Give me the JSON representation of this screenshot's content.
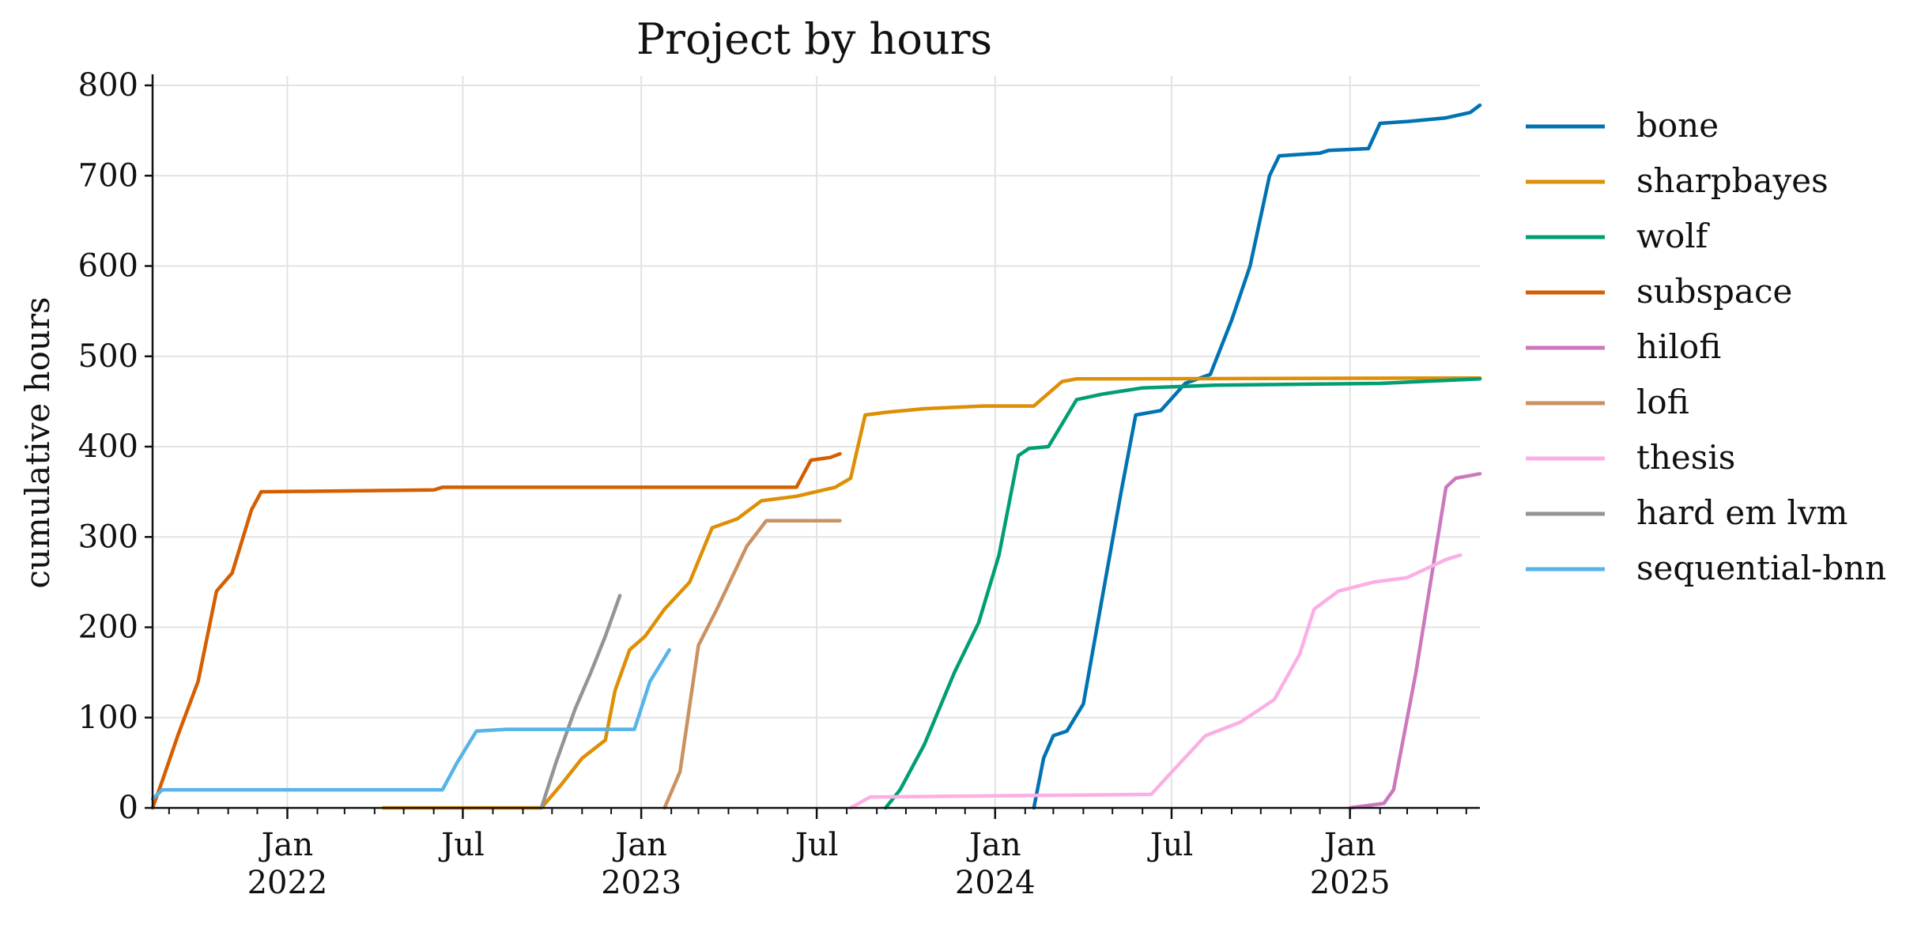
{
  "chart_data": {
    "type": "line",
    "title": "Project by hours",
    "xlabel": "",
    "ylabel": "cumulative hours",
    "xlim": [
      "2021-08-15",
      "2025-05-15"
    ],
    "ylim": [
      0,
      800
    ],
    "yticks": [
      0,
      100,
      200,
      300,
      400,
      500,
      600,
      700,
      800
    ],
    "xticks": [
      {
        "date": "2022-01-01",
        "label": "Jan",
        "sublabel": "2022"
      },
      {
        "date": "2022-07-01",
        "label": "Jul",
        "sublabel": ""
      },
      {
        "date": "2023-01-01",
        "label": "Jan",
        "sublabel": "2023"
      },
      {
        "date": "2023-07-01",
        "label": "Jul",
        "sublabel": ""
      },
      {
        "date": "2024-01-01",
        "label": "Jan",
        "sublabel": "2024"
      },
      {
        "date": "2024-07-01",
        "label": "Jul",
        "sublabel": ""
      },
      {
        "date": "2025-01-01",
        "label": "Jan",
        "sublabel": "2025"
      }
    ],
    "grid": true,
    "legend_position": "outside-right",
    "series": [
      {
        "name": "bone",
        "color": "#0173b2",
        "points": [
          [
            "2024-02-10",
            0
          ],
          [
            "2024-02-20",
            55
          ],
          [
            "2024-03-01",
            80
          ],
          [
            "2024-03-15",
            85
          ],
          [
            "2024-04-01",
            115
          ],
          [
            "2024-04-20",
            230
          ],
          [
            "2024-05-10",
            350
          ],
          [
            "2024-05-25",
            435
          ],
          [
            "2024-06-20",
            440
          ],
          [
            "2024-07-15",
            470
          ],
          [
            "2024-08-10",
            480
          ],
          [
            "2024-09-01",
            540
          ],
          [
            "2024-09-20",
            600
          ],
          [
            "2024-10-10",
            700
          ],
          [
            "2024-10-20",
            722
          ],
          [
            "2024-12-01",
            725
          ],
          [
            "2024-12-10",
            728
          ],
          [
            "2025-01-20",
            730
          ],
          [
            "2025-02-01",
            758
          ],
          [
            "2025-03-01",
            760
          ],
          [
            "2025-04-10",
            764
          ],
          [
            "2025-05-05",
            770
          ],
          [
            "2025-05-15",
            778
          ]
        ]
      },
      {
        "name": "sharpbayes",
        "color": "#de8f05",
        "points": [
          [
            "2022-04-10",
            0
          ],
          [
            "2022-09-20",
            0
          ],
          [
            "2022-10-10",
            25
          ],
          [
            "2022-11-01",
            55
          ],
          [
            "2022-11-25",
            75
          ],
          [
            "2022-12-05",
            130
          ],
          [
            "2022-12-20",
            175
          ],
          [
            "2023-01-05",
            190
          ],
          [
            "2023-01-25",
            220
          ],
          [
            "2023-02-20",
            250
          ],
          [
            "2023-03-15",
            310
          ],
          [
            "2023-04-10",
            320
          ],
          [
            "2023-05-05",
            340
          ],
          [
            "2023-06-10",
            345
          ],
          [
            "2023-07-20",
            355
          ],
          [
            "2023-08-05",
            365
          ],
          [
            "2023-08-20",
            435
          ],
          [
            "2023-09-10",
            438
          ],
          [
            "2023-10-20",
            442
          ],
          [
            "2023-12-20",
            445
          ],
          [
            "2024-02-10",
            445
          ],
          [
            "2024-03-10",
            472
          ],
          [
            "2024-03-25",
            475
          ],
          [
            "2025-05-15",
            476
          ]
        ]
      },
      {
        "name": "wolf",
        "color": "#029e73",
        "points": [
          [
            "2023-09-10",
            0
          ],
          [
            "2023-09-25",
            20
          ],
          [
            "2023-10-20",
            70
          ],
          [
            "2023-11-20",
            150
          ],
          [
            "2023-12-15",
            205
          ],
          [
            "2024-01-05",
            280
          ],
          [
            "2024-01-25",
            390
          ],
          [
            "2024-02-05",
            398
          ],
          [
            "2024-02-25",
            400
          ],
          [
            "2024-03-10",
            425
          ],
          [
            "2024-03-25",
            452
          ],
          [
            "2024-04-20",
            458
          ],
          [
            "2024-06-01",
            465
          ],
          [
            "2024-08-15",
            468
          ],
          [
            "2025-02-01",
            470
          ],
          [
            "2025-05-15",
            475
          ]
        ]
      },
      {
        "name": "subspace",
        "color": "#d55e00",
        "points": [
          [
            "2021-08-15",
            0
          ],
          [
            "2021-08-25",
            30
          ],
          [
            "2021-09-10",
            80
          ],
          [
            "2021-10-01",
            140
          ],
          [
            "2021-10-20",
            240
          ],
          [
            "2021-11-05",
            260
          ],
          [
            "2021-11-25",
            330
          ],
          [
            "2021-12-05",
            350
          ],
          [
            "2022-06-01",
            352
          ],
          [
            "2022-06-10",
            355
          ],
          [
            "2023-06-10",
            355
          ],
          [
            "2023-06-25",
            385
          ],
          [
            "2023-07-15",
            388
          ],
          [
            "2023-07-25",
            392
          ]
        ]
      },
      {
        "name": "hilofi",
        "color": "#cc78bc",
        "points": [
          [
            "2025-01-01",
            0
          ],
          [
            "2025-02-05",
            5
          ],
          [
            "2025-02-15",
            20
          ],
          [
            "2025-03-10",
            150
          ],
          [
            "2025-04-10",
            355
          ],
          [
            "2025-04-20",
            365
          ],
          [
            "2025-05-15",
            370
          ]
        ]
      },
      {
        "name": "lofi",
        "color": "#ca9161",
        "points": [
          [
            "2023-01-25",
            0
          ],
          [
            "2023-02-10",
            40
          ],
          [
            "2023-03-01",
            180
          ],
          [
            "2023-03-20",
            220
          ],
          [
            "2023-04-20",
            290
          ],
          [
            "2023-05-10",
            318
          ],
          [
            "2023-07-25",
            318
          ]
        ]
      },
      {
        "name": "thesis",
        "color": "#fbafe4",
        "points": [
          [
            "2023-08-05",
            0
          ],
          [
            "2023-08-25",
            12
          ],
          [
            "2024-06-10",
            15
          ],
          [
            "2024-07-10",
            50
          ],
          [
            "2024-08-05",
            80
          ],
          [
            "2024-09-10",
            95
          ],
          [
            "2024-10-15",
            120
          ],
          [
            "2024-11-10",
            170
          ],
          [
            "2024-11-25",
            220
          ],
          [
            "2024-12-20",
            240
          ],
          [
            "2025-01-25",
            250
          ],
          [
            "2025-03-01",
            255
          ],
          [
            "2025-04-10",
            275
          ],
          [
            "2025-04-25",
            280
          ]
        ]
      },
      {
        "name": "hard em lvm",
        "color": "#949494",
        "points": [
          [
            "2022-09-20",
            0
          ],
          [
            "2022-10-05",
            50
          ],
          [
            "2022-10-25",
            110
          ],
          [
            "2022-11-10",
            150
          ],
          [
            "2022-11-25",
            190
          ],
          [
            "2022-12-10",
            235
          ]
        ]
      },
      {
        "name": "sequential-bnn",
        "color": "#56b4e9",
        "points": [
          [
            "2021-08-15",
            10
          ],
          [
            "2021-08-25",
            20
          ],
          [
            "2022-06-10",
            20
          ],
          [
            "2022-06-25",
            50
          ],
          [
            "2022-07-15",
            85
          ],
          [
            "2022-08-15",
            87
          ],
          [
            "2022-12-25",
            87
          ],
          [
            "2023-01-10",
            140
          ],
          [
            "2023-01-30",
            175
          ]
        ]
      }
    ]
  }
}
